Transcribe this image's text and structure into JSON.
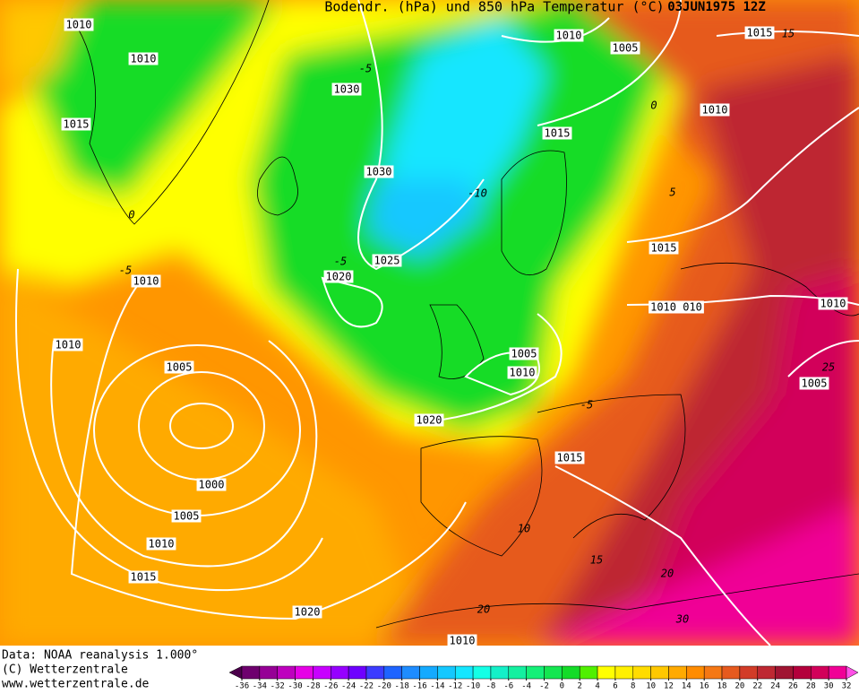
{
  "header": {
    "title": "Bodendr. (hPa) und 850 hPa Temperatur (°C)",
    "date": "03JUN1975 12Z"
  },
  "isobar_labels": [
    "1010",
    "1010",
    "1015",
    "1030",
    "1030",
    "1025",
    "1020",
    "1010",
    "1010",
    "1005",
    "1000",
    "1005",
    "1010",
    "1015",
    "1020",
    "1010",
    "1020",
    "1015",
    "1005",
    "1010",
    "1015",
    "1010",
    "1005",
    "1015",
    "1010",
    "1015",
    "1010 010",
    "1010",
    "1005"
  ],
  "temperature_labels": [
    "-5",
    "0",
    "-5",
    "-10",
    "-5",
    "-5",
    "0",
    "10",
    "15",
    "20",
    "25",
    "30",
    "20",
    "15",
    "5"
  ],
  "footer": {
    "source": "Data: NOAA reanalysis 1.000°",
    "copyright": "(C) Wetterzentrale",
    "url": "www.wetterzentrale.de"
  },
  "color_scale": {
    "ticks": [
      -36,
      -34,
      -32,
      -30,
      -28,
      -26,
      -24,
      -22,
      -20,
      -18,
      -16,
      -14,
      -12,
      -10,
      -8,
      -6,
      -4,
      -2,
      0,
      2,
      4,
      6,
      8,
      10,
      12,
      14,
      16,
      18,
      20,
      22,
      24,
      26,
      28,
      30,
      32
    ],
    "colors": [
      "#4b004b",
      "#6e006e",
      "#960096",
      "#be00be",
      "#e600e6",
      "#c800ff",
      "#9600ff",
      "#6e00ff",
      "#3c3cff",
      "#1e64ff",
      "#1e8cff",
      "#14aaff",
      "#14c8ff",
      "#14e6ff",
      "#14ffe6",
      "#14f0c8",
      "#14f0a0",
      "#14f078",
      "#14e650",
      "#14dc28",
      "#50f000",
      "#ffff00",
      "#fff000",
      "#ffdc00",
      "#ffc800",
      "#ffaa00",
      "#ff8c00",
      "#f57814",
      "#e65a1e",
      "#d23c28",
      "#be2832",
      "#a01432",
      "#b4003c",
      "#d2005a",
      "#f00096",
      "#ff50e6"
    ]
  }
}
